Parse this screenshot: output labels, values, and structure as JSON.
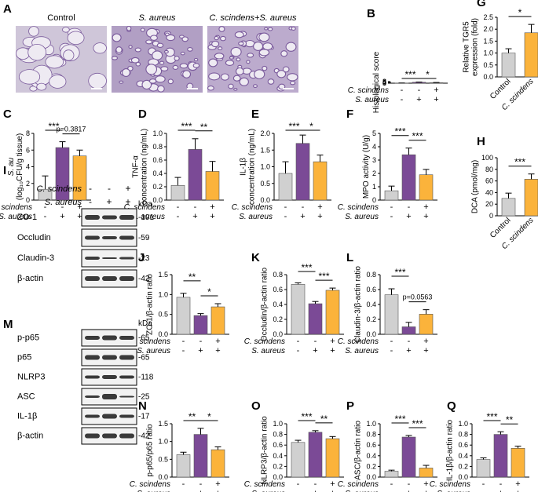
{
  "colors": {
    "control": "#d0d0d0",
    "saureus": "#7b4a96",
    "combo": "#fbb33b",
    "tissue": "#a08cbb",
    "blot": "#1a1a1a"
  },
  "micrographs": {
    "letter": "A",
    "labels": [
      "Control",
      "S. aureus",
      "C. scindens+S. aureus"
    ]
  },
  "treatment_rows": {
    "labels": [
      "C. scindens",
      "S. aureus"
    ],
    "signs3": [
      [
        "-",
        "-",
        "+"
      ],
      [
        "-",
        "+",
        "+"
      ]
    ]
  },
  "xcats2": [
    "Control",
    "C. scindens"
  ],
  "blots": {
    "I": {
      "letter": "I",
      "kda": "kDa",
      "signs": [
        [
          "-",
          "-",
          "+"
        ],
        [
          "-",
          "+",
          "+"
        ]
      ],
      "treat_labels": [
        "C. scindens",
        "S. aureus"
      ],
      "rows": [
        {
          "name": "ZO-1",
          "size": "191"
        },
        {
          "name": "Occludin",
          "size": "59"
        },
        {
          "name": "Claudin-3",
          "size": "23"
        },
        {
          "name": "β-actin",
          "size": "42"
        }
      ]
    },
    "M": {
      "letter": "M",
      "kda": "kDa",
      "rows": [
        {
          "name": "p-p65",
          "size": "65"
        },
        {
          "name": "p65",
          "size": "65"
        },
        {
          "name": "NLRP3",
          "size": "118"
        },
        {
          "name": "ASC",
          "size": "25"
        },
        {
          "name": "IL-1β",
          "size": "17"
        },
        {
          "name": "β-actin",
          "size": "42"
        }
      ]
    }
  },
  "chart_data": [
    {
      "id": "B",
      "type": "bar",
      "ylabel": "Histological score",
      "yticks": [
        "0",
        "2",
        "4",
        "6",
        "8"
      ],
      "ylim": [
        0,
        8
      ],
      "values": [
        0.4,
        4.6,
        2.4
      ],
      "errors": [
        0.6,
        1.1,
        1.2
      ],
      "sig": [
        {
          "a": 0,
          "b": 1,
          "text": "***"
        },
        {
          "a": 1,
          "b": 2,
          "text": "*"
        }
      ],
      "layout": "treat"
    },
    {
      "id": "G",
      "type": "bar",
      "ylabel": "Relative TGR5 expression (fold)",
      "ylabel_lines": [
        "Relative TGR5",
        "expression (fold)"
      ],
      "yticks": [
        "0.0",
        "0.5",
        "1.0",
        "1.5",
        "2.0",
        "2.5"
      ],
      "ylim": [
        0,
        2.5
      ],
      "values": [
        1.0,
        1.85
      ],
      "errors": [
        0.18,
        0.35
      ],
      "sig": [
        {
          "a": 0,
          "b": 1,
          "text": "*"
        }
      ],
      "layout": "two"
    },
    {
      "id": "C",
      "type": "bar",
      "ylabel_lines": [
        "S. au",
        "(log₁₀CFU/g tissue)"
      ],
      "yticks": [
        "0",
        "2",
        "4",
        "6",
        "8"
      ],
      "ylim": [
        0,
        8
      ],
      "values": [
        1.3,
        6.3,
        5.3
      ],
      "errors": [
        1.6,
        0.7,
        0.7
      ],
      "sig": [
        {
          "a": 0,
          "b": 1,
          "text": "***"
        },
        {
          "a": 1,
          "b": 2,
          "text": "p=0.3817"
        }
      ],
      "layout": "treat"
    },
    {
      "id": "D",
      "type": "bar",
      "ylabel_lines": [
        "TNF-α",
        "concentration (ng/mL)"
      ],
      "yticks": [
        "0.0",
        "0.2",
        "0.4",
        "0.6",
        "0.8",
        "1.0"
      ],
      "ylim": [
        0,
        1.0
      ],
      "values": [
        0.22,
        0.76,
        0.43
      ],
      "errors": [
        0.12,
        0.16,
        0.15
      ],
      "sig": [
        {
          "a": 0,
          "b": 1,
          "text": "***"
        },
        {
          "a": 1,
          "b": 2,
          "text": "**"
        }
      ],
      "layout": "treat"
    },
    {
      "id": "E",
      "type": "bar",
      "ylabel_lines": [
        "IL-1β",
        "concentration (ng/mL)"
      ],
      "yticks": [
        "0.0",
        "0.5",
        "1.0",
        "1.5",
        "2.0"
      ],
      "ylim": [
        0,
        2.0
      ],
      "values": [
        0.8,
        1.7,
        1.15
      ],
      "errors": [
        0.35,
        0.25,
        0.2
      ],
      "sig": [
        {
          "a": 0,
          "b": 1,
          "text": "***"
        },
        {
          "a": 1,
          "b": 2,
          "text": "*"
        }
      ],
      "layout": "treat"
    },
    {
      "id": "F",
      "type": "bar",
      "ylabel": "MPO activity (U/g)",
      "yticks": [
        "0",
        "1",
        "2",
        "3",
        "4",
        "5"
      ],
      "ylim": [
        0,
        5
      ],
      "values": [
        0.7,
        3.4,
        1.9
      ],
      "errors": [
        0.35,
        0.5,
        0.4
      ],
      "sig": [
        {
          "a": 0,
          "b": 1,
          "text": "***"
        },
        {
          "a": 1,
          "b": 2,
          "text": "***"
        }
      ],
      "layout": "treat"
    },
    {
      "id": "H",
      "type": "bar",
      "ylabel": "DCA (pmol/mg)",
      "yticks": [
        "0",
        "20",
        "40",
        "60",
        "80",
        "100"
      ],
      "ylim": [
        0,
        100
      ],
      "values": [
        30,
        63
      ],
      "errors": [
        9,
        9
      ],
      "sig": [
        {
          "a": 0,
          "b": 1,
          "text": "***"
        }
      ],
      "layout": "two"
    },
    {
      "id": "J",
      "type": "bar",
      "ylabel": "ZO-1/β-actin ratio",
      "yticks": [
        "0.0",
        "0.5",
        "1.0",
        "1.5"
      ],
      "ylim": [
        0,
        1.5
      ],
      "values": [
        0.93,
        0.47,
        0.69
      ],
      "errors": [
        0.1,
        0.05,
        0.08
      ],
      "sig": [
        {
          "a": 0,
          "b": 1,
          "text": "**"
        },
        {
          "a": 1,
          "b": 2,
          "text": "*"
        }
      ],
      "layout": "treat"
    },
    {
      "id": "K",
      "type": "bar",
      "ylabel": "Occludin/β-actin ratio",
      "yticks": [
        "0.0",
        "0.2",
        "0.4",
        "0.6",
        "0.8"
      ],
      "ylim": [
        0,
        0.8
      ],
      "values": [
        0.67,
        0.41,
        0.59
      ],
      "errors": [
        0.02,
        0.03,
        0.03
      ],
      "sig": [
        {
          "a": 0,
          "b": 1,
          "text": "***"
        },
        {
          "a": 1,
          "b": 2,
          "text": "***"
        }
      ],
      "layout": "treat"
    },
    {
      "id": "L",
      "type": "bar",
      "ylabel": "Claudin-3/β-actin ratio",
      "yticks": [
        "0.0",
        "0.2",
        "0.4",
        "0.6",
        "0.8"
      ],
      "ylim": [
        0,
        0.8
      ],
      "values": [
        0.53,
        0.1,
        0.27
      ],
      "errors": [
        0.08,
        0.06,
        0.06
      ],
      "sig": [
        {
          "a": 0,
          "b": 1,
          "text": "***"
        },
        {
          "a": 1,
          "b": 2,
          "text": "p=0.0563"
        }
      ],
      "layout": "treat"
    },
    {
      "id": "N",
      "type": "bar",
      "ylabel": "p-p65/p65 ratio",
      "yticks": [
        "0.0",
        "0.5",
        "1.0",
        "1.5"
      ],
      "ylim": [
        0,
        1.5
      ],
      "values": [
        0.63,
        1.2,
        0.77
      ],
      "errors": [
        0.07,
        0.17,
        0.08
      ],
      "sig": [
        {
          "a": 0,
          "b": 1,
          "text": "**"
        },
        {
          "a": 1,
          "b": 2,
          "text": "*"
        }
      ],
      "layout": "treat"
    },
    {
      "id": "O",
      "type": "bar",
      "ylabel": "NLRP3/β-actin ratio",
      "yticks": [
        "0.0",
        "0.2",
        "0.4",
        "0.6",
        "0.8",
        "1.0"
      ],
      "ylim": [
        0,
        1.0
      ],
      "values": [
        0.65,
        0.84,
        0.72
      ],
      "errors": [
        0.04,
        0.03,
        0.04
      ],
      "sig": [
        {
          "a": 0,
          "b": 1,
          "text": "***"
        },
        {
          "a": 1,
          "b": 2,
          "text": "**"
        }
      ],
      "layout": "treat"
    },
    {
      "id": "P",
      "type": "bar",
      "ylabel": "ASC/β-actin ratio",
      "yticks": [
        "0.0",
        "0.2",
        "0.4",
        "0.6",
        "0.8",
        "1.0"
      ],
      "ylim": [
        0,
        1.0
      ],
      "values": [
        0.11,
        0.75,
        0.17
      ],
      "errors": [
        0.02,
        0.03,
        0.05
      ],
      "sig": [
        {
          "a": 0,
          "b": 1,
          "text": "***"
        },
        {
          "a": 1,
          "b": 2,
          "text": "***"
        }
      ],
      "layout": "treat"
    },
    {
      "id": "Q",
      "type": "bar",
      "ylabel": "IL-1β/β-actin ratio",
      "yticks": [
        "0.0",
        "0.2",
        "0.4",
        "0.6",
        "0.8",
        "1.0"
      ],
      "ylim": [
        0,
        1.0
      ],
      "values": [
        0.33,
        0.8,
        0.54
      ],
      "errors": [
        0.03,
        0.05,
        0.04
      ],
      "sig": [
        {
          "a": 0,
          "b": 1,
          "text": "***"
        },
        {
          "a": 1,
          "b": 2,
          "text": "**"
        }
      ],
      "layout": "treat"
    }
  ]
}
